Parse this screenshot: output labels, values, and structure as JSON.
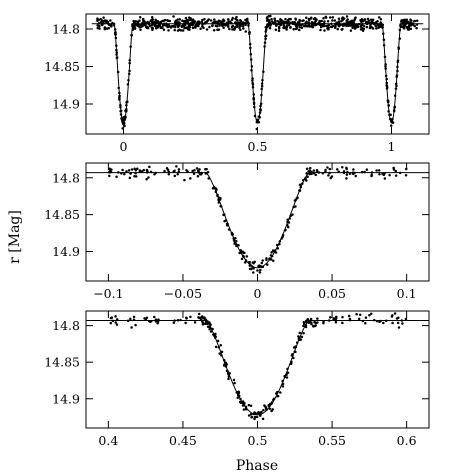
{
  "figure": {
    "xlabel": "Phase",
    "ylabel": "r [Mag]"
  },
  "chart_data": [
    {
      "type": "scatter",
      "panel": "top",
      "title": "",
      "xlabel": "",
      "ylabel": "",
      "xlim": [
        -0.14,
        1.14
      ],
      "ylim": [
        14.78,
        14.94
      ],
      "y_inverted": true,
      "x_ticks": [
        0,
        0.5,
        1
      ],
      "x_tick_labels": [
        "0",
        "0.5",
        "1"
      ],
      "y_ticks": [
        14.8,
        14.85,
        14.9
      ],
      "y_tick_labels": [
        "14.8",
        "14.85",
        "14.9"
      ],
      "grid": false,
      "legend": "none",
      "model": {
        "baseline": 14.793,
        "minimum": 14.925,
        "eclipse_centers": [
          0,
          0.5,
          1
        ],
        "eclipse_half_width": 0.035
      },
      "phase_range": [
        -0.1,
        1.1
      ],
      "scatter_mag": 0.004
    },
    {
      "type": "scatter",
      "panel": "middle",
      "title": "",
      "xlabel": "",
      "ylabel": "",
      "xlim": [
        -0.115,
        0.115
      ],
      "ylim": [
        14.78,
        14.94
      ],
      "y_inverted": true,
      "x_ticks": [
        -0.1,
        -0.05,
        0,
        0.05,
        0.1
      ],
      "x_tick_labels": [
        "−0.1",
        "−0.05",
        "0",
        "0.05",
        "0.1"
      ],
      "y_ticks": [
        14.8,
        14.85,
        14.9
      ],
      "y_tick_labels": [
        "14.8",
        "14.85",
        "14.9"
      ],
      "grid": false,
      "legend": "none",
      "model": {
        "baseline": 14.793,
        "minimum": 14.922,
        "eclipse_centers": [
          0
        ],
        "eclipse_half_width": 0.035
      },
      "phase_range": [
        -0.1,
        0.1
      ],
      "scatter_mag": 0.004
    },
    {
      "type": "scatter",
      "panel": "bottom",
      "title": "",
      "xlabel": "Phase",
      "ylabel": "",
      "xlim": [
        0.385,
        0.615
      ],
      "ylim": [
        14.78,
        14.94
      ],
      "y_inverted": true,
      "x_ticks": [
        0.4,
        0.45,
        0.5,
        0.55,
        0.6
      ],
      "x_tick_labels": [
        "0.4",
        "0.45",
        "0.5",
        "0.55",
        "0.6"
      ],
      "y_ticks": [
        14.8,
        14.85,
        14.9
      ],
      "y_tick_labels": [
        "14.8",
        "14.85",
        "14.9"
      ],
      "grid": false,
      "legend": "none",
      "model": {
        "baseline": 14.793,
        "minimum": 14.922,
        "eclipse_centers": [
          0.5
        ],
        "eclipse_half_width": 0.035
      },
      "phase_range": [
        0.4,
        0.6
      ],
      "scatter_mag": 0.004
    }
  ]
}
